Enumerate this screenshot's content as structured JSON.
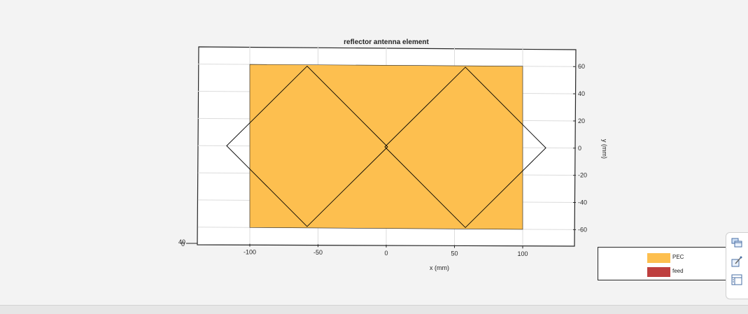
{
  "chart_data": {
    "type": "3d-geometry",
    "title": "reflector antenna element",
    "xlabel": "x (mm)",
    "ylabel": "y (mm)",
    "xticks": [
      -100,
      -50,
      0,
      50,
      100
    ],
    "yticks": [
      60,
      40,
      20,
      0,
      -20,
      -40,
      -60
    ],
    "corner_tick_labels": [
      "40",
      "0"
    ],
    "xlim": [
      -140,
      140
    ],
    "ylim": [
      -73,
      74
    ],
    "grid": true,
    "reflector_plate": {
      "material": "PEC",
      "x_range": [
        -100,
        100
      ],
      "y_range": [
        -60,
        60
      ],
      "color": "#FDBF4F"
    },
    "dipole_elements": [
      {
        "center": [
          -58,
          0
        ],
        "half_diagonal": 59
      },
      {
        "center": [
          58,
          0
        ],
        "half_diagonal": 59
      }
    ],
    "legend_position": "bottom-right"
  },
  "legend": {
    "items": [
      {
        "label": "PEC",
        "color": "#FDBF4F"
      },
      {
        "label": "feed",
        "color": "#BE3F3F"
      }
    ]
  },
  "toolbar": {
    "buttons": [
      {
        "icon": "view-icon"
      },
      {
        "icon": "edit-figure-icon"
      },
      {
        "icon": "layout-icon"
      }
    ]
  }
}
